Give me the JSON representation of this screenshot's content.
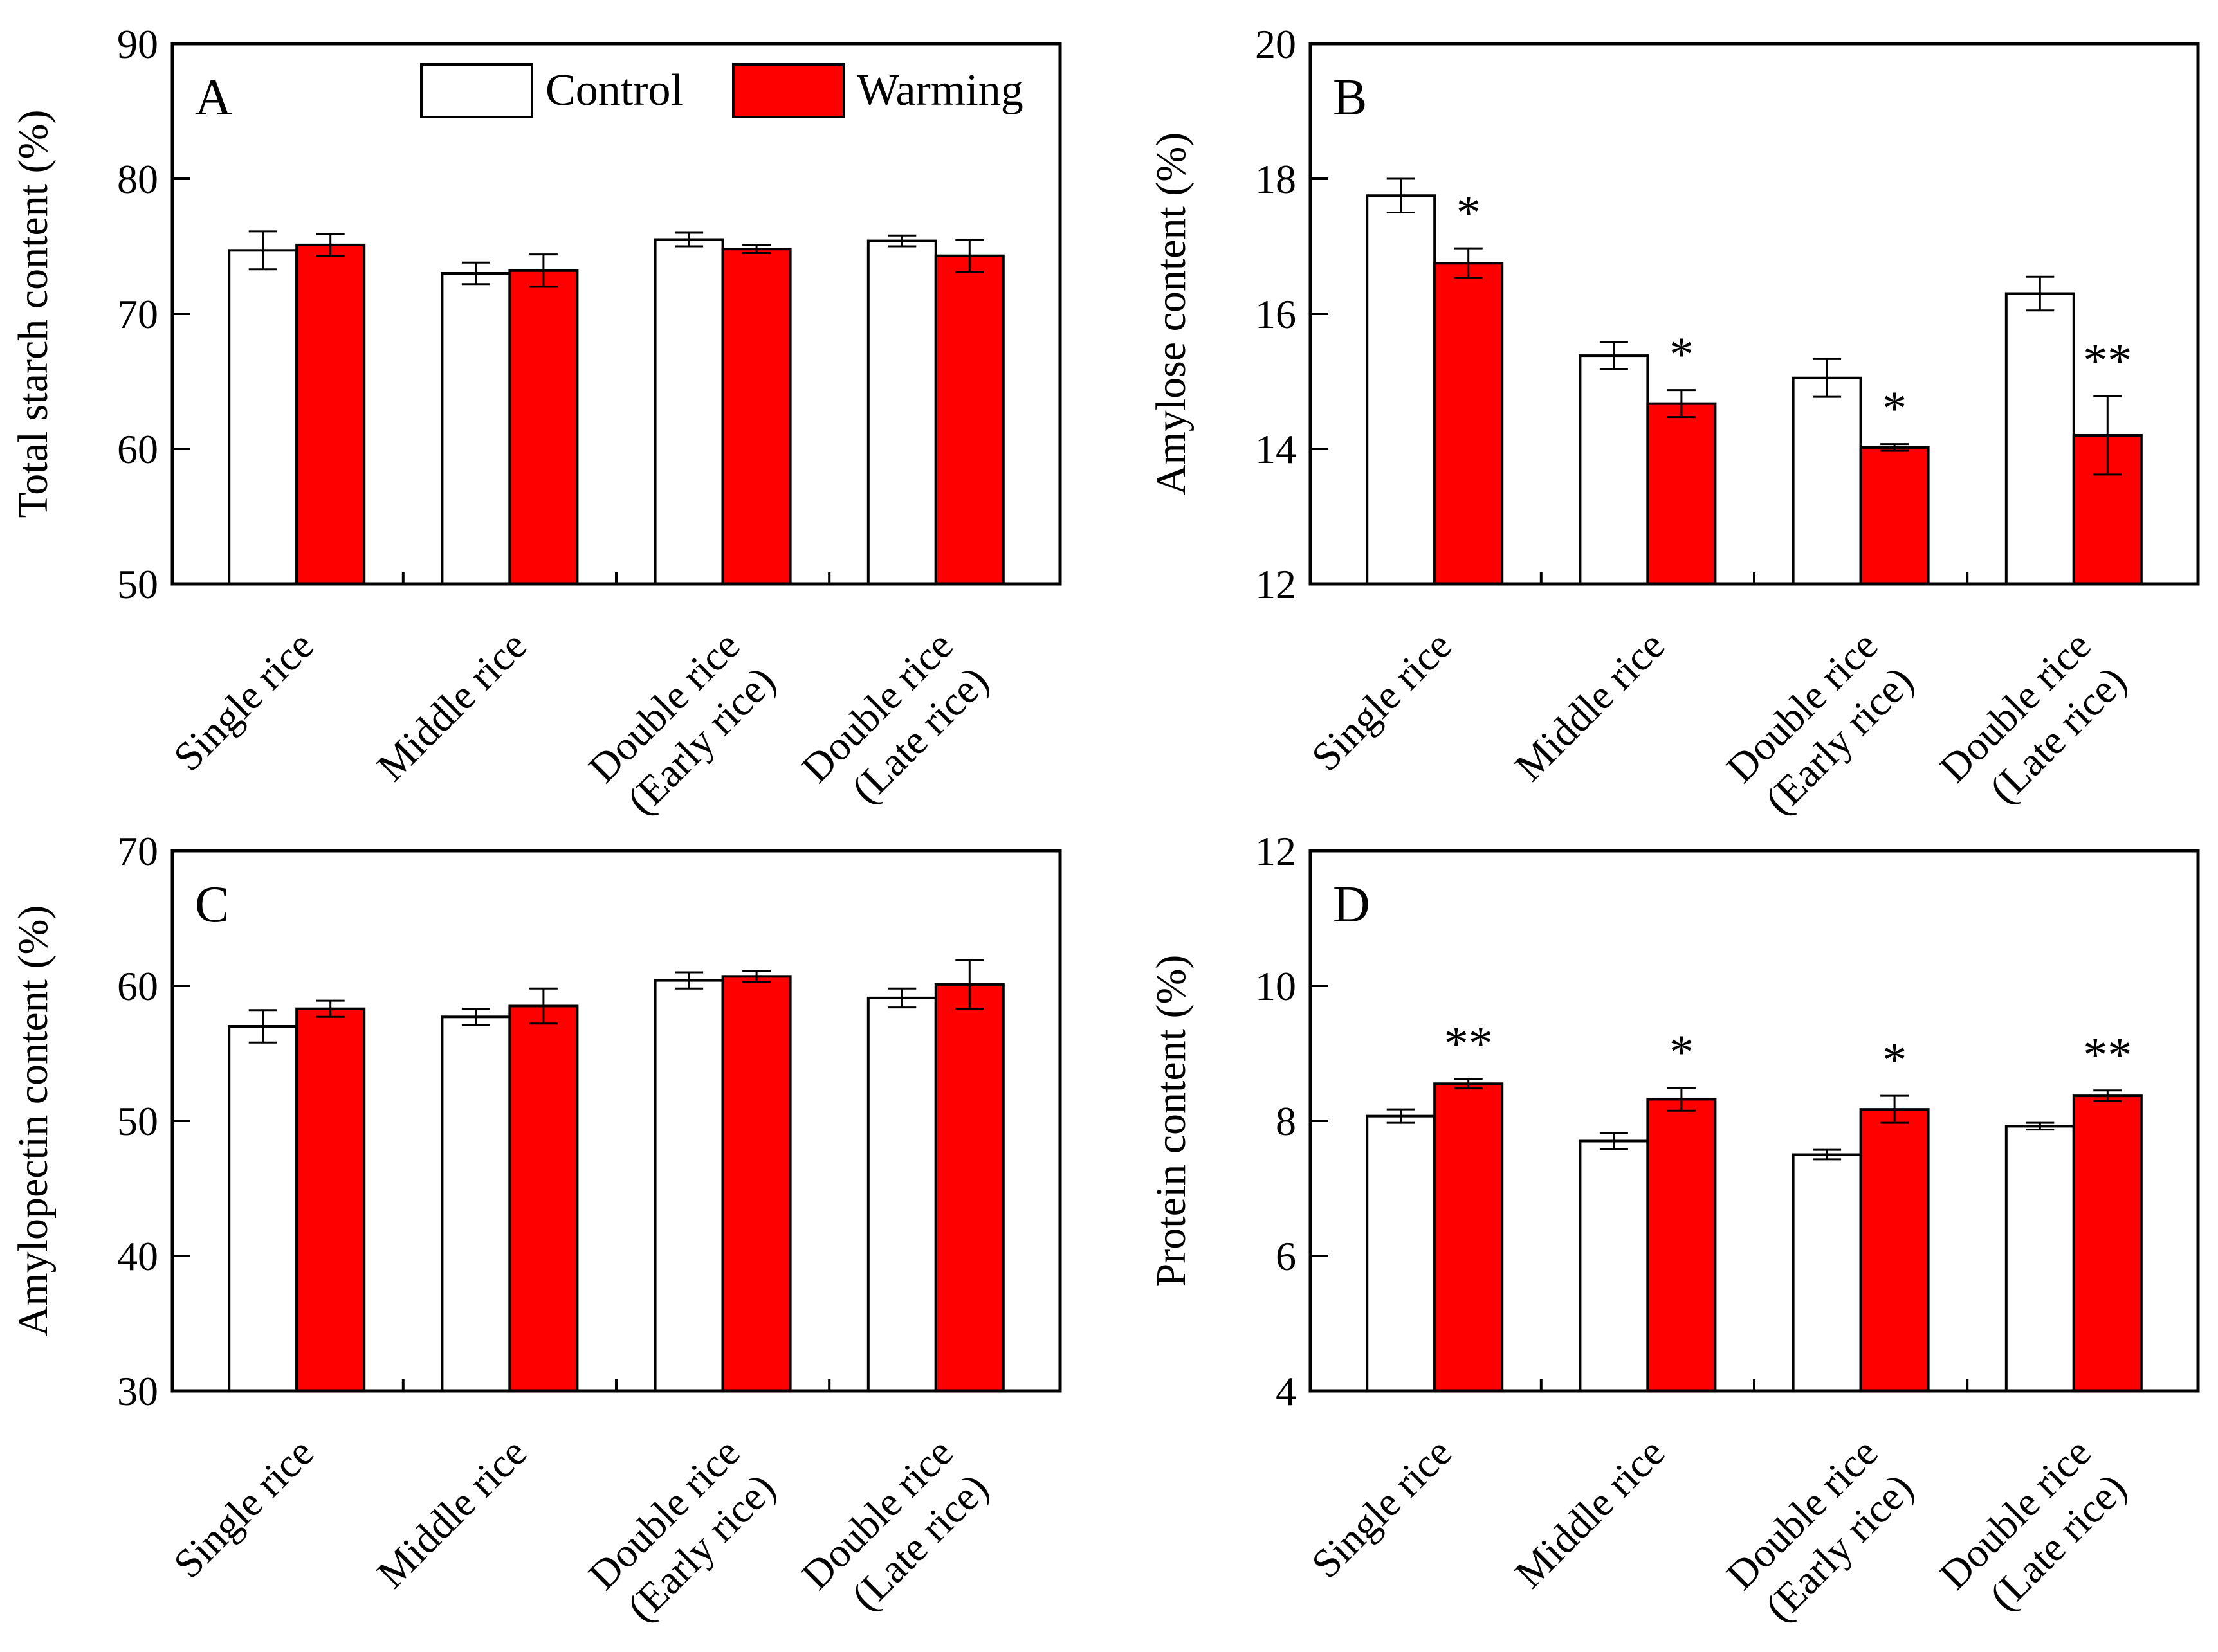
{
  "legend": {
    "control": "Control",
    "warming": "Warming"
  },
  "colors": {
    "control": "#ffffff",
    "warming": "#ff0000",
    "stroke": "#000000"
  },
  "chart_data": [
    {
      "type": "bar",
      "panel": "A",
      "ylabel": "Total starch content (%)",
      "ylim": [
        50,
        90
      ],
      "yticks": [
        50,
        60,
        70,
        80,
        90
      ],
      "categories": [
        [
          "Single rice"
        ],
        [
          "Middle rice"
        ],
        [
          "Double rice",
          "(Early rice)"
        ],
        [
          "Double rice",
          "(Late rice)"
        ]
      ],
      "series": [
        {
          "name": "Control",
          "values": [
            74.7,
            73.0,
            75.5,
            75.4
          ],
          "errors": [
            1.4,
            0.8,
            0.5,
            0.4
          ]
        },
        {
          "name": "Warming",
          "values": [
            75.1,
            73.2,
            74.8,
            74.3
          ],
          "errors": [
            0.8,
            1.2,
            0.3,
            1.2
          ]
        }
      ],
      "significance": [
        "",
        "",
        "",
        ""
      ],
      "legend_position": "top-right"
    },
    {
      "type": "bar",
      "panel": "B",
      "ylabel": "Amylose content (%)",
      "ylim": [
        12,
        20
      ],
      "yticks": [
        12,
        14,
        16,
        18,
        20
      ],
      "categories": [
        [
          "Single rice"
        ],
        [
          "Middle rice"
        ],
        [
          "Double rice",
          "(Early rice)"
        ],
        [
          "Double rice",
          "(Late rice)"
        ]
      ],
      "series": [
        {
          "name": "Control",
          "values": [
            17.75,
            15.38,
            15.05,
            16.3
          ],
          "errors": [
            0.25,
            0.2,
            0.28,
            0.25
          ]
        },
        {
          "name": "Warming",
          "values": [
            16.75,
            14.67,
            14.02,
            14.2
          ],
          "errors": [
            0.22,
            0.2,
            0.05,
            0.58
          ]
        }
      ],
      "significance": [
        "*",
        "*",
        "*",
        "**"
      ]
    },
    {
      "type": "bar",
      "panel": "C",
      "ylabel": "Amylopectin content (%)",
      "ylim": [
        30,
        70
      ],
      "yticks": [
        30,
        40,
        50,
        60,
        70
      ],
      "categories": [
        [
          "Single rice"
        ],
        [
          "Middle rice"
        ],
        [
          "Double rice",
          "(Early rice)"
        ],
        [
          "Double rice",
          "(Late rice)"
        ]
      ],
      "series": [
        {
          "name": "Control",
          "values": [
            57.0,
            57.7,
            60.4,
            59.1
          ],
          "errors": [
            1.2,
            0.6,
            0.6,
            0.7
          ]
        },
        {
          "name": "Warming",
          "values": [
            58.3,
            58.5,
            60.7,
            60.1
          ],
          "errors": [
            0.6,
            1.3,
            0.4,
            1.8
          ]
        }
      ],
      "significance": [
        "",
        "",
        "",
        ""
      ]
    },
    {
      "type": "bar",
      "panel": "D",
      "ylabel": "Protein content (%)",
      "ylim": [
        4,
        12
      ],
      "yticks": [
        4,
        6,
        8,
        10,
        12
      ],
      "categories": [
        [
          "Single rice"
        ],
        [
          "Middle rice"
        ],
        [
          "Double rice",
          "(Early rice)"
        ],
        [
          "Double rice",
          "(Late rice)"
        ]
      ],
      "series": [
        {
          "name": "Control",
          "values": [
            8.07,
            7.7,
            7.5,
            7.92
          ],
          "errors": [
            0.1,
            0.12,
            0.07,
            0.05
          ]
        },
        {
          "name": "Warming",
          "values": [
            8.55,
            8.32,
            8.17,
            8.37
          ],
          "errors": [
            0.07,
            0.17,
            0.2,
            0.08
          ]
        }
      ],
      "significance": [
        "**",
        "*",
        "*",
        "**"
      ]
    }
  ]
}
